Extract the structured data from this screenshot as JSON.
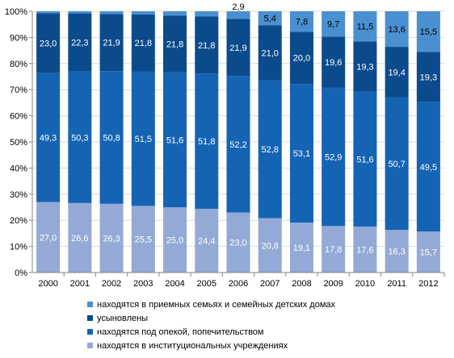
{
  "chart_data": {
    "type": "bar",
    "stacked": true,
    "categories": [
      "2000",
      "2001",
      "2002",
      "2003",
      "2004",
      "2005",
      "2006",
      "2007",
      "2008",
      "2009",
      "2010",
      "2011",
      "2012"
    ],
    "series": [
      {
        "name": "находятся в институциональных учреждениях",
        "color": "#94AAD6",
        "label_color": "#ffffff",
        "values": [
          27.0,
          26.6,
          26.3,
          25.5,
          25.0,
          24.4,
          23.0,
          20.8,
          19.1,
          17.8,
          17.6,
          16.3,
          15.7
        ],
        "labels": [
          "27,0",
          "26,6",
          "26,3",
          "25,5",
          "25,0",
          "24,4",
          "23,0",
          "20,8",
          "19,1",
          "17,8",
          "17,6",
          "16,3",
          "15,7"
        ]
      },
      {
        "name": "находятся под опекой, попечительством",
        "color": "#1564B4",
        "label_color": "#ffffff",
        "values": [
          49.3,
          50.3,
          50.8,
          51.5,
          51.6,
          51.8,
          52.2,
          52.8,
          53.1,
          52.9,
          51.6,
          50.7,
          49.5
        ],
        "labels": [
          "49,3",
          "50,3",
          "50,8",
          "51,5",
          "51,6",
          "51,8",
          "52,2",
          "52,8",
          "53,1",
          "52,9",
          "51,6",
          "50,7",
          "49,5"
        ]
      },
      {
        "name": "усыновлены",
        "color": "#0B4B8C",
        "label_color": "#ffffff",
        "values": [
          23.0,
          22.3,
          21.9,
          21.8,
          21.8,
          21.8,
          21.9,
          21.0,
          20.0,
          19.6,
          19.3,
          19.4,
          19.3
        ],
        "labels": [
          "23,0",
          "22,3",
          "21,9",
          "21,8",
          "21,8",
          "21,8",
          "21,9",
          "21,0",
          "20,0",
          "19,6",
          "19,3",
          "19,4",
          "19,3"
        ]
      },
      {
        "name": "находятся в приемных семьях и семейных детских домах",
        "color": "#4A90D0",
        "label_color": "#000000",
        "values": [
          0.7,
          0.8,
          1.0,
          1.2,
          1.6,
          2.0,
          2.9,
          5.4,
          7.8,
          9.7,
          11.5,
          13.6,
          15.5
        ],
        "labels": [
          "",
          "",
          "",
          "",
          "",
          "",
          "2,9",
          "5,4",
          "7,8",
          "9,7",
          "11,5",
          "13,6",
          "15,5"
        ]
      }
    ],
    "yticks": [
      "0%",
      "10%",
      "20%",
      "30%",
      "40%",
      "50%",
      "60%",
      "70%",
      "80%",
      "90%",
      "100%"
    ],
    "ylim": [
      0,
      100
    ],
    "legend_order": [
      3,
      2,
      1,
      0
    ],
    "legend_position": "bottom"
  }
}
